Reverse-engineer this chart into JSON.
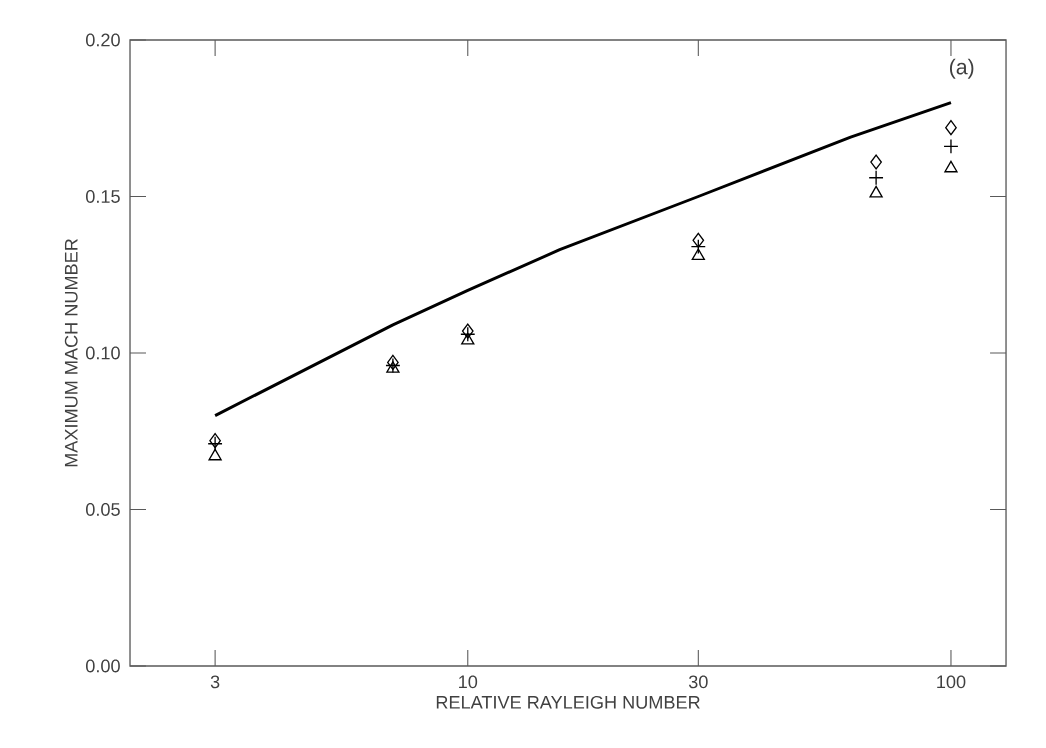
{
  "chart_data": {
    "type": "line",
    "xlabel": "RELATIVE RAYLEIGH NUMBER",
    "ylabel": "MAXIMUM MACH NUMBER",
    "annotations": [
      "(a)"
    ],
    "log": "x",
    "grid": false,
    "xlim": [
      2.0,
      130
    ],
    "xticks": [
      3,
      10,
      30,
      100
    ],
    "ylim": [
      0,
      0.2
    ],
    "yticks": [
      {
        "value": 0,
        "label": "0.00"
      },
      {
        "value": 0.05,
        "label": "0.05"
      },
      {
        "value": 0.1,
        "label": "0.10"
      },
      {
        "value": 0.15,
        "label": "0.15"
      },
      {
        "value": 0.2,
        "label": "0.20"
      }
    ],
    "series": [
      {
        "color": "#000000",
        "marker": "none",
        "line_style": "solid",
        "x": [
          3,
          7.0,
          10,
          15.5,
          30,
          62,
          100
        ],
        "values": [
          0.08,
          0.109,
          0.12,
          0.133,
          0.15,
          0.169,
          0.18
        ]
      },
      {
        "type": "scatter",
        "color": "#000000",
        "marker": "diamond",
        "x": [
          3,
          7,
          10,
          30,
          70,
          100
        ],
        "values": [
          0.072,
          0.097,
          0.107,
          0.136,
          0.161,
          0.172
        ]
      },
      {
        "type": "scatter",
        "color": "#000000",
        "marker": "cross",
        "x": [
          3,
          7,
          10,
          30,
          70,
          100
        ],
        "values": [
          0.071,
          0.096,
          0.106,
          0.134,
          0.156,
          0.166
        ]
      },
      {
        "type": "scatter",
        "color": "#000000",
        "marker": "triangle",
        "x": [
          3,
          7,
          10,
          30,
          70,
          100
        ],
        "values": [
          0.067,
          0.095,
          0.104,
          0.131,
          0.151,
          0.159
        ]
      }
    ]
  }
}
